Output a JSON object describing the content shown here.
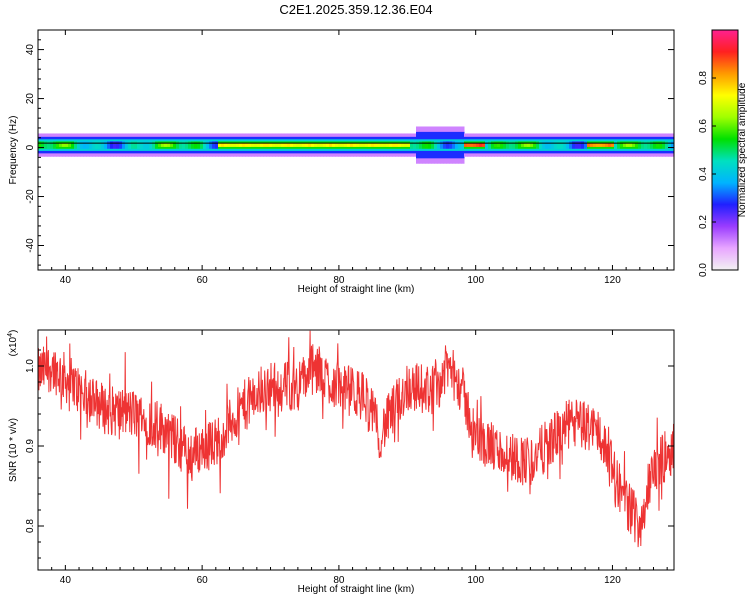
{
  "title": "C2E1.2025.359.12.36.E04",
  "chart_data": [
    {
      "type": "heatmap",
      "name": "spectrogram",
      "xlabel": "Height of straight line (km)",
      "ylabel": "Frequency (Hz)",
      "xlim": [
        36,
        129
      ],
      "ylim": [
        -50,
        48
      ],
      "x_ticks": [
        40,
        60,
        80,
        100,
        120
      ],
      "x_tick_labels": [
        "40",
        "60",
        "80",
        "100",
        "120"
      ],
      "y_ticks": [
        40,
        20,
        0,
        -20,
        -40
      ],
      "y_tick_labels": [
        "40",
        "20",
        "0",
        "-20",
        "-40"
      ],
      "band_center_hz": 1,
      "band_halfwidth_hz": 2.5,
      "hot_segments": [
        {
          "x0": 62,
          "x1": 90,
          "amplitude": 0.75
        },
        {
          "x0": 98,
          "x1": 101,
          "amplitude": 0.9
        },
        {
          "x0": 116,
          "x1": 120,
          "amplitude": 0.85
        }
      ],
      "colorbar": {
        "label": "Normalized spectral amplitude",
        "range": [
          0,
          1
        ],
        "ticks": [
          0.0,
          0.2,
          0.4,
          0.6,
          0.8
        ],
        "tick_labels": [
          "0.0",
          "0.2",
          "0.4",
          "0.6",
          "0.8"
        ],
        "colors": [
          "#f2f2f2",
          "#e8a6ff",
          "#9a3cff",
          "#2020ff",
          "#00b4ff",
          "#00e0c0",
          "#00e000",
          "#a0ff00",
          "#ffff00",
          "#ff9a00",
          "#ff2020",
          "#ff2090"
        ]
      }
    },
    {
      "type": "line",
      "name": "snr",
      "xlabel": "Height of straight line (km)",
      "ylabel": "SNR (10 * v/v)",
      "y_scale_note": "(x10",
      "y_scale_exp": "4",
      "y_scale_close": ")",
      "xlim": [
        36,
        129
      ],
      "ylim": [
        0.745,
        1.045
      ],
      "x_ticks": [
        40,
        60,
        80,
        100,
        120
      ],
      "x_tick_labels": [
        "40",
        "60",
        "80",
        "100",
        "120"
      ],
      "y_ticks": [
        1.0,
        0.9,
        0.8
      ],
      "y_tick_labels": [
        "1.0",
        "0.9",
        "0.8"
      ],
      "line_color": "#ee3333",
      "trend": {
        "x": [
          36,
          38,
          42,
          46,
          50,
          54,
          58,
          62,
          66,
          70,
          74,
          76,
          80,
          84,
          86,
          90,
          94,
          96,
          98,
          100,
          104,
          108,
          112,
          114,
          118,
          120,
          122,
          124,
          126,
          129
        ],
        "y": [
          0.99,
          1.0,
          0.97,
          0.945,
          0.94,
          0.925,
          0.89,
          0.905,
          0.95,
          0.975,
          0.975,
          0.995,
          0.975,
          0.96,
          0.915,
          0.975,
          0.97,
          1.0,
          0.97,
          0.91,
          0.89,
          0.88,
          0.915,
          0.93,
          0.92,
          0.87,
          0.83,
          0.8,
          0.87,
          0.9
        ]
      },
      "noise_amplitude": 0.04
    }
  ]
}
